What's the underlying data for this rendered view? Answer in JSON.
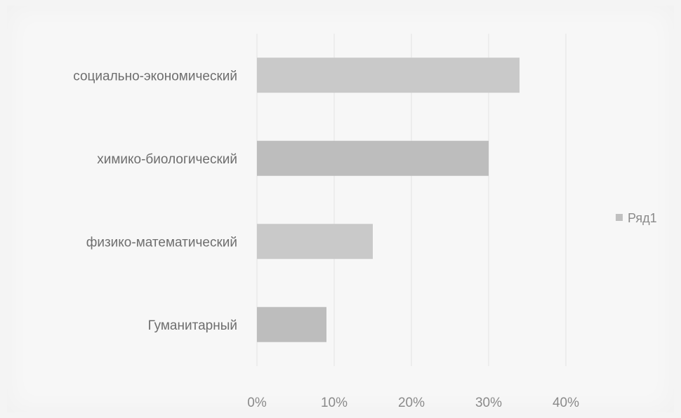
{
  "chart_data": {
    "type": "bar",
    "orientation": "horizontal",
    "categories": [
      "социально-экономический",
      "химико-биологический",
      "физико-математический",
      "Гуманитарный"
    ],
    "series": [
      {
        "name": "Ряд1",
        "values": [
          34,
          30,
          15,
          9
        ]
      }
    ],
    "xlim": [
      0,
      40
    ],
    "ticks": [
      "0%",
      "10%",
      "20%",
      "30%",
      "40%"
    ],
    "grid": true,
    "legend": "right",
    "colors": {
      "bar": "#c9c9c9",
      "bar_alt": "#bdbdbd",
      "grid": "#e3e3e3",
      "legend_marker": "#c0c0c0"
    }
  }
}
